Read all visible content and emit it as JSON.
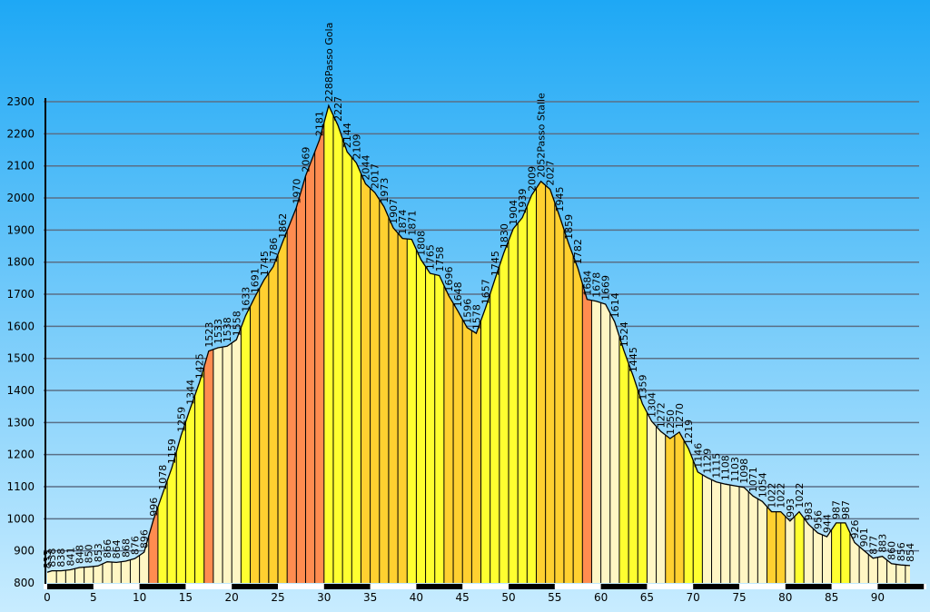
{
  "chart_data": {
    "type": "area",
    "title": "",
    "xlabel": "",
    "ylabel": "",
    "xlim": [
      0,
      95
    ],
    "ylim": [
      800,
      2300
    ],
    "x_ticks": [
      0,
      5,
      10,
      15,
      20,
      25,
      30,
      35,
      40,
      45,
      50,
      55,
      60,
      65,
      70,
      75,
      80,
      85,
      90
    ],
    "y_ticks": [
      800,
      900,
      1000,
      1100,
      1200,
      1300,
      1400,
      1500,
      1600,
      1700,
      1800,
      1900,
      2000,
      2100,
      2200,
      2300
    ],
    "grid": true,
    "profile": [
      {
        "x": 0,
        "y": 833,
        "label": "833"
      },
      {
        "x": 0.5,
        "y": 838,
        "label": "838"
      },
      {
        "x": 1.5,
        "y": 838,
        "label": "838"
      },
      {
        "x": 2.5,
        "y": 841,
        "label": "841"
      },
      {
        "x": 3.5,
        "y": 848,
        "label": "848"
      },
      {
        "x": 4.5,
        "y": 850,
        "label": "850"
      },
      {
        "x": 5.5,
        "y": 853,
        "label": "853"
      },
      {
        "x": 6.5,
        "y": 866,
        "label": "866"
      },
      {
        "x": 7.5,
        "y": 864,
        "label": "864"
      },
      {
        "x": 8.5,
        "y": 868,
        "label": "868"
      },
      {
        "x": 9.5,
        "y": 876,
        "label": "876"
      },
      {
        "x": 10.5,
        "y": 896,
        "label": "896"
      },
      {
        "x": 11.5,
        "y": 996,
        "label": "996"
      },
      {
        "x": 12.5,
        "y": 1078,
        "label": "1078"
      },
      {
        "x": 13.5,
        "y": 1159,
        "label": "1159"
      },
      {
        "x": 14.5,
        "y": 1259,
        "label": "1259"
      },
      {
        "x": 15.5,
        "y": 1344,
        "label": "1344"
      },
      {
        "x": 16.5,
        "y": 1425,
        "label": "1425"
      },
      {
        "x": 17.5,
        "y": 1523,
        "label": "1523"
      },
      {
        "x": 18.5,
        "y": 1533,
        "label": "1533"
      },
      {
        "x": 19.5,
        "y": 1538,
        "label": "1538"
      },
      {
        "x": 20.5,
        "y": 1558,
        "label": "1558"
      },
      {
        "x": 21.5,
        "y": 1633,
        "label": "1633"
      },
      {
        "x": 22.5,
        "y": 1691,
        "label": "1691"
      },
      {
        "x": 23.5,
        "y": 1745,
        "label": "1745"
      },
      {
        "x": 24.5,
        "y": 1786,
        "label": "1786"
      },
      {
        "x": 25.5,
        "y": 1862,
        "label": "1862"
      },
      {
        "x": 27,
        "y": 1970,
        "label": "1970"
      },
      {
        "x": 28,
        "y": 2069,
        "label": "2069"
      },
      {
        "x": 29.5,
        "y": 2181,
        "label": "2181"
      },
      {
        "x": 30.5,
        "y": 2288,
        "label": "2288"
      },
      {
        "x": 31.5,
        "y": 2227,
        "label": "2227"
      },
      {
        "x": 32.5,
        "y": 2144,
        "label": "2144"
      },
      {
        "x": 33.5,
        "y": 2109,
        "label": "2109"
      },
      {
        "x": 34.5,
        "y": 2044,
        "label": "2044"
      },
      {
        "x": 35.5,
        "y": 2017,
        "label": "2017"
      },
      {
        "x": 36.5,
        "y": 1973,
        "label": "1973"
      },
      {
        "x": 37.5,
        "y": 1907,
        "label": "1907"
      },
      {
        "x": 38.5,
        "y": 1874,
        "label": "1874"
      },
      {
        "x": 39.5,
        "y": 1871,
        "label": "1871"
      },
      {
        "x": 40.5,
        "y": 1808,
        "label": "1808"
      },
      {
        "x": 41.5,
        "y": 1765,
        "label": "1765"
      },
      {
        "x": 42.5,
        "y": 1758,
        "label": "1758"
      },
      {
        "x": 43.5,
        "y": 1696,
        "label": "1696"
      },
      {
        "x": 44.5,
        "y": 1648,
        "label": "1648"
      },
      {
        "x": 45.5,
        "y": 1596,
        "label": "1596"
      },
      {
        "x": 46.5,
        "y": 1578,
        "label": "1578"
      },
      {
        "x": 47.5,
        "y": 1657,
        "label": "1657"
      },
      {
        "x": 48.5,
        "y": 1745,
        "label": "1745"
      },
      {
        "x": 49.5,
        "y": 1830,
        "label": "1830"
      },
      {
        "x": 50.5,
        "y": 1904,
        "label": "1904"
      },
      {
        "x": 51.5,
        "y": 1939,
        "label": "1939"
      },
      {
        "x": 52.5,
        "y": 2009,
        "label": "2009"
      },
      {
        "x": 53.5,
        "y": 2052,
        "label": "2052"
      },
      {
        "x": 54.5,
        "y": 2027,
        "label": "2027"
      },
      {
        "x": 55.5,
        "y": 1945,
        "label": "1945"
      },
      {
        "x": 56.5,
        "y": 1859,
        "label": "1859"
      },
      {
        "x": 57.5,
        "y": 1782,
        "label": "1782"
      },
      {
        "x": 58.5,
        "y": 1684,
        "label": "1684"
      },
      {
        "x": 59.5,
        "y": 1678,
        "label": "1678"
      },
      {
        "x": 60.5,
        "y": 1669,
        "label": "1669"
      },
      {
        "x": 61.5,
        "y": 1614,
        "label": "1614"
      },
      {
        "x": 62.5,
        "y": 1524,
        "label": "1524"
      },
      {
        "x": 63.5,
        "y": 1445,
        "label": "1445"
      },
      {
        "x": 64.5,
        "y": 1359,
        "label": "1359"
      },
      {
        "x": 65.5,
        "y": 1304,
        "label": "1304"
      },
      {
        "x": 66.5,
        "y": 1272,
        "label": "1272"
      },
      {
        "x": 67.5,
        "y": 1250,
        "label": "1250"
      },
      {
        "x": 68.5,
        "y": 1270,
        "label": "1270"
      },
      {
        "x": 69.5,
        "y": 1219,
        "label": "1219"
      },
      {
        "x": 70.5,
        "y": 1146,
        "label": "1146"
      },
      {
        "x": 71.5,
        "y": 1129,
        "label": "1129"
      },
      {
        "x": 72.5,
        "y": 1115,
        "label": "1115"
      },
      {
        "x": 73.5,
        "y": 1108,
        "label": "1108"
      },
      {
        "x": 74.5,
        "y": 1103,
        "label": "1103"
      },
      {
        "x": 75.5,
        "y": 1098,
        "label": "1098"
      },
      {
        "x": 76.5,
        "y": 1071,
        "label": "1071"
      },
      {
        "x": 77.5,
        "y": 1054,
        "label": "1054"
      },
      {
        "x": 78.5,
        "y": 1022,
        "label": "1022"
      },
      {
        "x": 79.5,
        "y": 1022,
        "label": "1022"
      },
      {
        "x": 80.5,
        "y": 993,
        "label": "993"
      },
      {
        "x": 81.5,
        "y": 1022,
        "label": "1022"
      },
      {
        "x": 82.5,
        "y": 983,
        "label": "983"
      },
      {
        "x": 83.5,
        "y": 956,
        "label": "956"
      },
      {
        "x": 84.5,
        "y": 944,
        "label": "944"
      },
      {
        "x": 85.5,
        "y": 987,
        "label": "987"
      },
      {
        "x": 86.5,
        "y": 987,
        "label": "987"
      },
      {
        "x": 87.5,
        "y": 926,
        "label": "926"
      },
      {
        "x": 88.5,
        "y": 901,
        "label": "901"
      },
      {
        "x": 89.5,
        "y": 877,
        "label": "877"
      },
      {
        "x": 90.5,
        "y": 883,
        "label": "883"
      },
      {
        "x": 91.5,
        "y": 860,
        "label": "860"
      },
      {
        "x": 92.5,
        "y": 856,
        "label": "856"
      },
      {
        "x": 93.5,
        "y": 854,
        "label": "854"
      }
    ],
    "pass_labels": [
      {
        "x": 30.5,
        "y": 2288,
        "name": "Passo Gola"
      },
      {
        "x": 53.5,
        "y": 2052,
        "name": "Passo Stalle"
      }
    ],
    "band_colors": {
      "easy": "#fff6c4",
      "moderate": "#ffff30",
      "hard": "#ffd030",
      "steep": "#ff8c50"
    },
    "bands": [
      {
        "x0": 0,
        "x1": 11,
        "grade": "easy"
      },
      {
        "x0": 11,
        "x1": 12,
        "grade": "steep"
      },
      {
        "x0": 12,
        "x1": 17,
        "grade": "moderate"
      },
      {
        "x0": 17,
        "x1": 18,
        "grade": "steep"
      },
      {
        "x0": 18,
        "x1": 21,
        "grade": "easy"
      },
      {
        "x0": 21,
        "x1": 22,
        "grade": "moderate"
      },
      {
        "x0": 22,
        "x1": 26,
        "grade": "hard"
      },
      {
        "x0": 26,
        "x1": 30,
        "grade": "steep"
      },
      {
        "x0": 30,
        "x1": 34,
        "grade": "moderate"
      },
      {
        "x0": 34,
        "x1": 39,
        "grade": "hard"
      },
      {
        "x0": 39,
        "x1": 43,
        "grade": "moderate"
      },
      {
        "x0": 43,
        "x1": 47,
        "grade": "hard"
      },
      {
        "x0": 47,
        "x1": 53,
        "grade": "moderate"
      },
      {
        "x0": 53,
        "x1": 58,
        "grade": "hard"
      },
      {
        "x0": 58,
        "x1": 59,
        "grade": "steep"
      },
      {
        "x0": 59,
        "x1": 62,
        "grade": "easy"
      },
      {
        "x0": 62,
        "x1": 65,
        "grade": "moderate"
      },
      {
        "x0": 65,
        "x1": 67,
        "grade": "easy"
      },
      {
        "x0": 67,
        "x1": 69,
        "grade": "hard"
      },
      {
        "x0": 69,
        "x1": 71,
        "grade": "moderate"
      },
      {
        "x0": 71,
        "x1": 78,
        "grade": "easy"
      },
      {
        "x0": 78,
        "x1": 80,
        "grade": "hard"
      },
      {
        "x0": 80,
        "x1": 81,
        "grade": "easy"
      },
      {
        "x0": 81,
        "x1": 82,
        "grade": "moderate"
      },
      {
        "x0": 82,
        "x1": 85,
        "grade": "easy"
      },
      {
        "x0": 85,
        "x1": 87,
        "grade": "moderate"
      },
      {
        "x0": 87,
        "x1": 94,
        "grade": "easy"
      }
    ],
    "colors": {
      "sky_top": "#1ea8f5",
      "sky_bottom": "#c8ecff",
      "gridline": "#5a6f86",
      "profile_line": "#000000",
      "axis_bar_dark": "#000000",
      "axis_bar_light": "#ffffff"
    }
  }
}
